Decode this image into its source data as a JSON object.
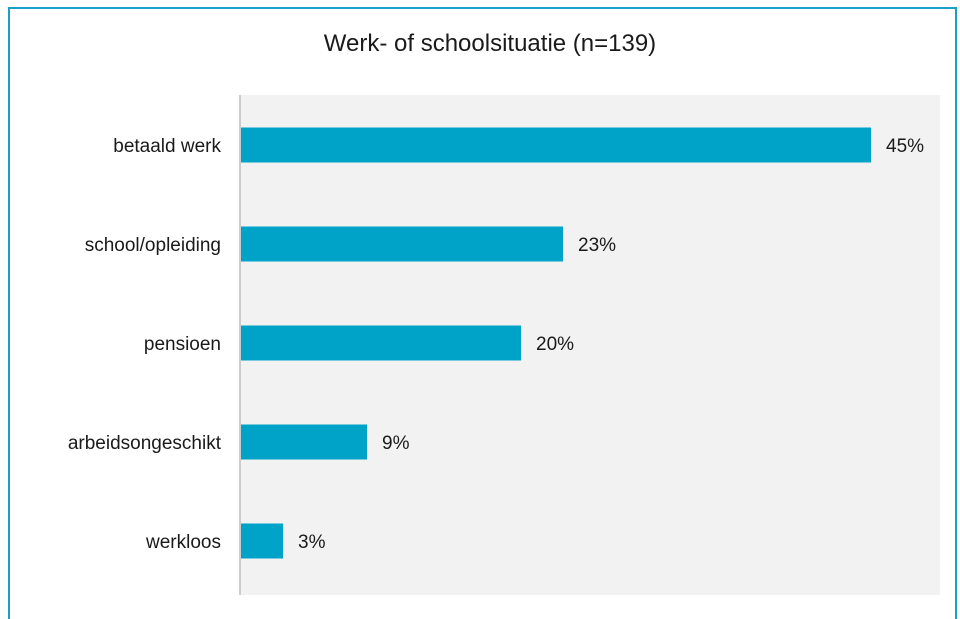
{
  "caption": "",
  "chart_data": {
    "type": "bar",
    "orientation": "horizontal",
    "title": "Werk- of schoolsituatie (n=139)",
    "categories": [
      "betaald werk",
      "school/opleiding",
      "pensioen",
      "arbeidsongeschikt",
      "werkloos"
    ],
    "values": [
      45,
      23,
      20,
      9,
      3
    ],
    "value_labels": [
      "45%",
      "23%",
      "20%",
      "9%",
      "3%"
    ],
    "xlim": [
      0,
      50
    ],
    "grid": false,
    "legend": "none",
    "colors": {
      "bar": "#00a3c8",
      "plot_background": "#f2f2f2",
      "axis": "#bfbfbf",
      "frame": "#1a9fc6"
    }
  }
}
